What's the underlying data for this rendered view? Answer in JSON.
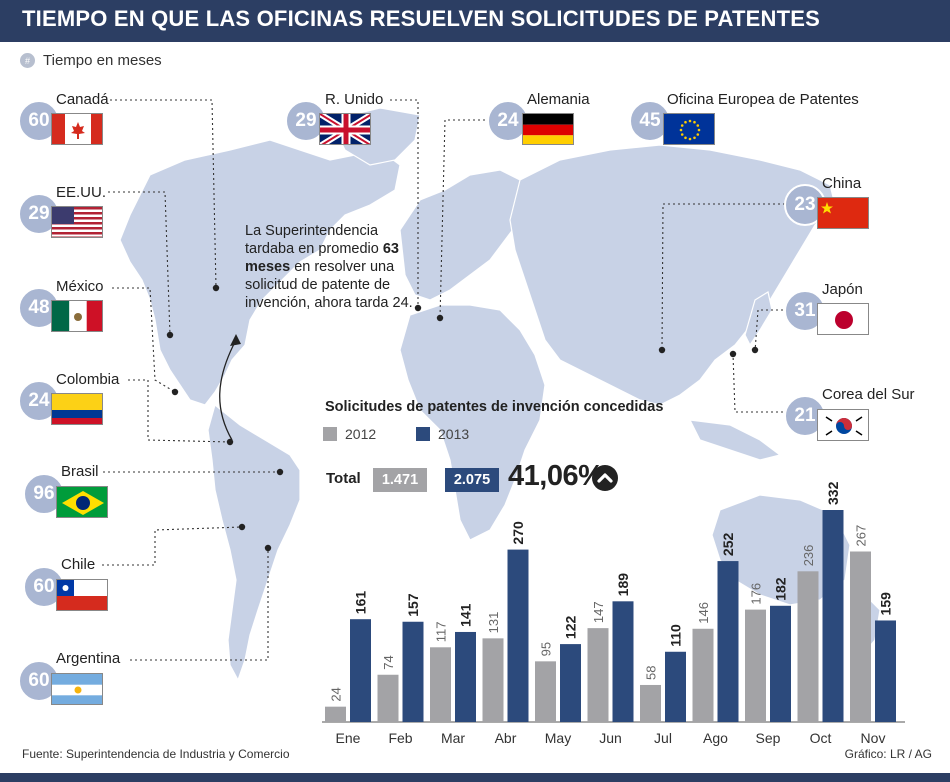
{
  "header": {
    "title": "TIEMPO EN QUE LAS OFICINAS RESUELVEN SOLICITUDES DE PATENTES"
  },
  "unit": {
    "icon": "hash-icon",
    "label": "Tiempo en meses"
  },
  "offices": [
    {
      "name": "Canadá",
      "months": "60",
      "flag": "canada"
    },
    {
      "name": "EE.UU.",
      "months": "29",
      "flag": "usa"
    },
    {
      "name": "México",
      "months": "48",
      "flag": "mexico"
    },
    {
      "name": "Colombia",
      "months": "24",
      "flag": "colombia"
    },
    {
      "name": "Brasil",
      "months": "96",
      "flag": "brazil"
    },
    {
      "name": "Chile",
      "months": "60",
      "flag": "chile"
    },
    {
      "name": "Argentina",
      "months": "60",
      "flag": "argentina"
    },
    {
      "name": "R. Unido",
      "months": "29",
      "flag": "uk"
    },
    {
      "name": "Alemania",
      "months": "24",
      "flag": "germany"
    },
    {
      "name": "Oficina Europea de Patentes",
      "months": "45",
      "flag": "eu"
    },
    {
      "name": "China",
      "months": "23",
      "flag": "china"
    },
    {
      "name": "Japón",
      "months": "31",
      "flag": "japan"
    },
    {
      "name": "Corea del Sur",
      "months": "21",
      "flag": "korea"
    }
  ],
  "note": {
    "line_a": "La Superintendencia tardaba en promedio",
    "bold": "63 meses",
    "line_b": "en resolver una solicitud de patente de invención, ahora tarda 24."
  },
  "totals": {
    "label": "Total",
    "v2012": "1.471",
    "v2013": "2.075",
    "change": "41,06%",
    "change_icon": "up-arrow-icon"
  },
  "colors": {
    "navy": "#2c4a7c",
    "gray": "#a3a3a6",
    "map": "#c8d2e6",
    "header": "#2c3e63",
    "badge": "#a9b6d2"
  },
  "chart_data": {
    "type": "bar",
    "title": "Solicitudes de patentes de invención concedidas",
    "categories": [
      "Ene",
      "Feb",
      "Mar",
      "Abr",
      "May",
      "Jun",
      "Jul",
      "Ago",
      "Sep",
      "Oct",
      "Nov"
    ],
    "series": [
      {
        "name": "2012",
        "values": [
          24,
          74,
          117,
          131,
          95,
          147,
          58,
          146,
          176,
          236,
          267
        ],
        "color": "#a3a3a6"
      },
      {
        "name": "2013",
        "values": [
          161,
          157,
          141,
          270,
          122,
          189,
          110,
          252,
          182,
          332,
          159
        ],
        "color": "#2c4a7c"
      }
    ],
    "ylim": [
      0,
      332
    ],
    "grid": false,
    "legend": "top-left"
  },
  "footer": {
    "source": "Fuente: Superintendencia de Industria y Comercio",
    "credit": "Gráfico: LR / AG"
  }
}
